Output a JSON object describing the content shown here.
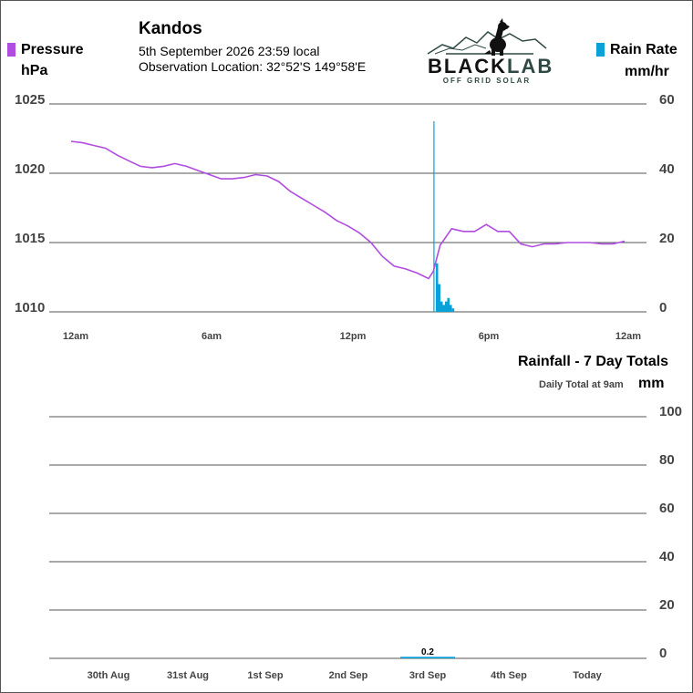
{
  "header": {
    "station": "Kandos",
    "datetime": "5th September 2026  23:59 local",
    "observation": "Observation Location:   32°52'S 149°58'E"
  },
  "logo": {
    "brand_left": "BLACK",
    "brand_right": "LAB",
    "tagline": "OFF GRID SOLAR"
  },
  "colors": {
    "pressure": "#b04ce0",
    "rain": "#0aa0d8",
    "grid": "#555555"
  },
  "chart_data": [
    {
      "type": "line",
      "series": [
        {
          "name": "Pressure",
          "unit": "hPa",
          "axis": "left",
          "x": [
            0,
            0.5,
            1,
            1.5,
            2,
            2.5,
            3,
            3.5,
            4,
            4.5,
            5,
            5.5,
            6,
            6.5,
            7,
            7.5,
            8,
            8.5,
            9,
            9.5,
            10,
            10.5,
            11,
            11.5,
            12,
            12.5,
            13,
            13.5,
            14,
            14.5,
            15,
            15.5,
            15.7,
            16,
            16.5,
            17,
            17.5,
            18,
            18.5,
            19,
            19.5,
            20,
            20.5,
            21,
            21.5,
            22,
            22.5,
            23,
            23.5,
            24
          ],
          "values": [
            1022.3,
            1022.2,
            1022.0,
            1021.8,
            1021.3,
            1020.9,
            1020.5,
            1020.4,
            1020.5,
            1020.7,
            1020.5,
            1020.2,
            1019.9,
            1019.6,
            1019.6,
            1019.7,
            1019.9,
            1019.8,
            1019.4,
            1018.7,
            1018.2,
            1017.7,
            1017.2,
            1016.6,
            1016.2,
            1015.7,
            1015.0,
            1014.0,
            1013.3,
            1013.1,
            1012.8,
            1012.4,
            1012.9,
            1014.8,
            1016.0,
            1015.8,
            1015.8,
            1016.3,
            1015.8,
            1015.8,
            1014.9,
            1014.7,
            1014.9,
            1014.9,
            1015.0,
            1015.0,
            1015.0,
            1014.9,
            1014.9,
            1015.1
          ]
        },
        {
          "name": "Rain Rate",
          "unit": "mm/hr",
          "axis": "right",
          "x": [
            15.75,
            15.85,
            15.95,
            16.05,
            16.15,
            16.25,
            16.35,
            16.45,
            16.55
          ],
          "values": [
            55,
            14,
            8,
            3,
            2,
            3,
            4,
            2,
            1
          ]
        }
      ],
      "x_ticks": [
        "12am",
        "6am",
        "12pm",
        "6pm",
        "12am"
      ],
      "x_range": [
        0,
        24
      ],
      "y_left_ticks": [
        1010,
        1015,
        1020,
        1025
      ],
      "y_left_range": [
        1010,
        1025
      ],
      "y_right_ticks": [
        0,
        20,
        40,
        60
      ],
      "y_right_range": [
        0,
        60
      ],
      "ylabel_left": "hPa",
      "ylabel_right": "mm/hr",
      "grid": true
    },
    {
      "type": "bar",
      "title": "Rainfall - 7 Day Totals",
      "subtitle": "Daily Total at 9am",
      "ylabel": "mm",
      "categories": [
        "30th Aug",
        "31st Aug",
        "1st Sep",
        "2nd Sep",
        "3rd Sep",
        "4th Sep",
        "Today"
      ],
      "values": [
        0,
        0,
        0,
        0,
        0.2,
        0,
        0
      ],
      "data_labels": [
        "",
        "",
        "",
        "",
        "0.2",
        "",
        ""
      ],
      "y_ticks": [
        0,
        20,
        40,
        60,
        80,
        100
      ],
      "ylim": [
        0,
        100
      ],
      "grid": true
    }
  ]
}
